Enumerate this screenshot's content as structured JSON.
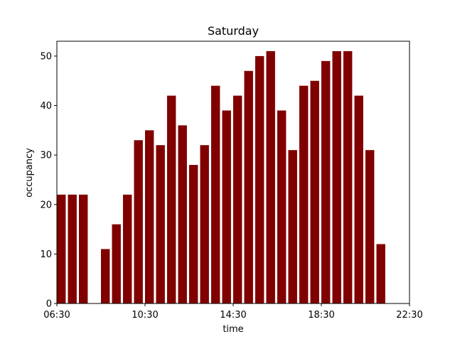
{
  "chart_data": {
    "type": "bar",
    "title": "Saturday",
    "xlabel": "time",
    "ylabel": "occupancy",
    "bar_color": "#800000",
    "x_axis": {
      "start": "06:30",
      "end": "22:30",
      "ticks": [
        "06:30",
        "10:30",
        "14:30",
        "18:30",
        "22:30"
      ]
    },
    "ylim": [
      0,
      53
    ],
    "y_ticks": [
      0,
      10,
      20,
      30,
      40,
      50
    ],
    "grid": false,
    "x": [
      "06:30",
      "07:00",
      "07:30",
      "08:00",
      "08:30",
      "09:00",
      "09:30",
      "10:00",
      "10:30",
      "11:00",
      "11:30",
      "12:00",
      "12:30",
      "13:00",
      "13:30",
      "14:00",
      "14:30",
      "15:00",
      "15:30",
      "16:00",
      "16:30",
      "17:00",
      "17:30",
      "18:00",
      "18:30",
      "19:00",
      "19:30",
      "20:00",
      "20:30",
      "21:00",
      "21:30"
    ],
    "values": [
      22,
      22,
      22,
      0,
      11,
      16,
      22,
      33,
      35,
      32,
      42,
      36,
      28,
      32,
      44,
      39,
      42,
      47,
      50,
      51,
      39,
      31,
      44,
      45,
      49,
      51,
      51,
      42,
      31,
      12,
      0
    ]
  }
}
